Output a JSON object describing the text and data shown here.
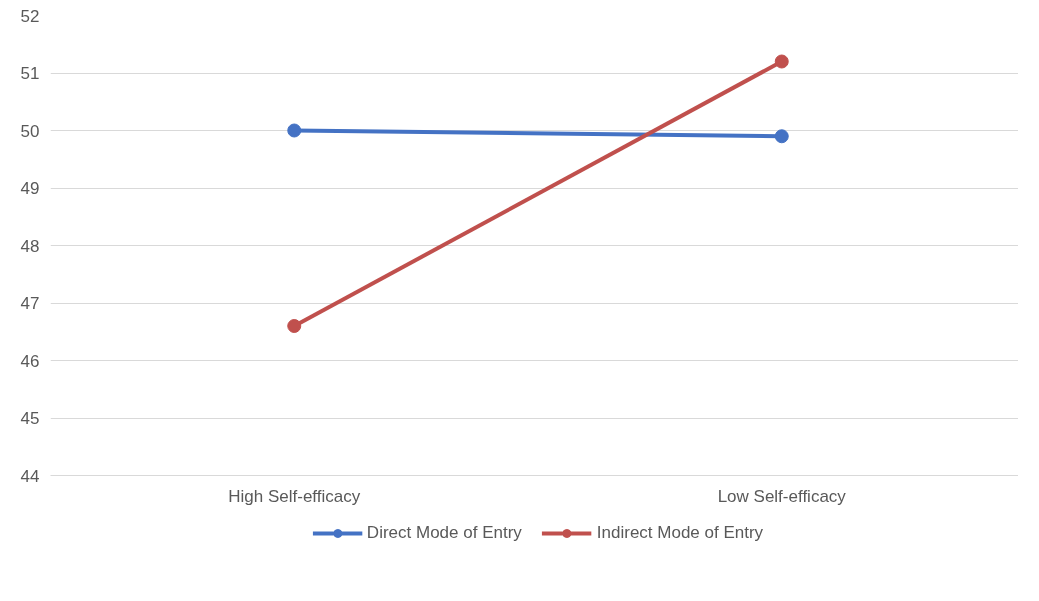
{
  "chart_data": {
    "type": "line",
    "categories": [
      "High Self-efficacy",
      "Low Self-efficacy"
    ],
    "series": [
      {
        "name": "Direct Mode of Entry",
        "color": "#4472c4",
        "values": [
          50.0,
          49.9
        ]
      },
      {
        "name": "Indirect Mode of Entry",
        "color": "#c0504d",
        "values": [
          46.6,
          51.2
        ]
      }
    ],
    "ylim": [
      44,
      52
    ],
    "yticks": [
      44,
      45,
      46,
      47,
      48,
      49,
      50,
      51,
      52
    ],
    "grid": "y",
    "legend": "bottom",
    "marker": "circle",
    "line_style": "solid"
  }
}
